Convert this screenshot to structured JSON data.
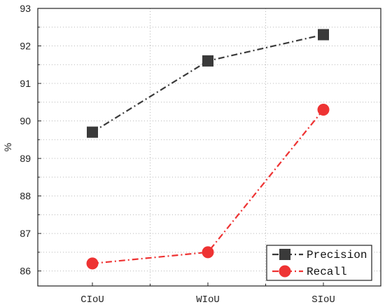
{
  "chart_data": {
    "type": "line",
    "categories": [
      "CIoU",
      "WIoU",
      "SIoU"
    ],
    "ylabel": "%",
    "xlabel": "",
    "ylim": [
      85.6,
      93
    ],
    "yticks": [
      86,
      87,
      88,
      89,
      90,
      91,
      92,
      93
    ],
    "grid": true,
    "legend_position": "bottom-right",
    "series": [
      {
        "name": "Precision",
        "values": [
          89.7,
          91.6,
          92.3
        ],
        "color": "#3a3a3a",
        "marker": "square",
        "line_style": "dash-dot"
      },
      {
        "name": "Recall",
        "values": [
          86.2,
          86.5,
          90.3
        ],
        "color": "#ee3333",
        "marker": "circle",
        "line_style": "dash-dot"
      }
    ]
  }
}
